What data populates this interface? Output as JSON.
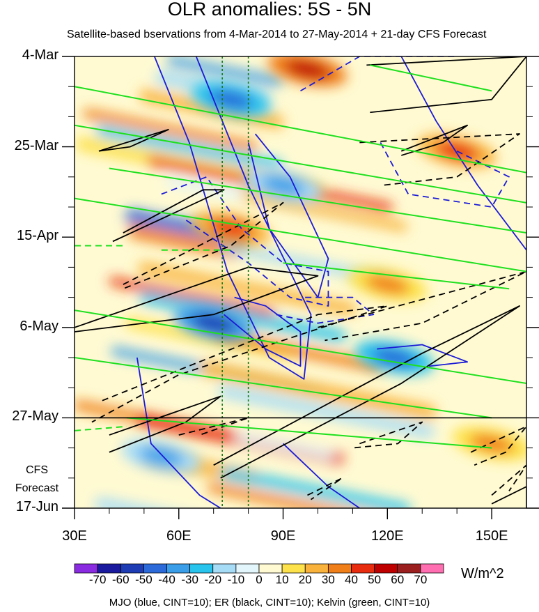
{
  "chart_data": {
    "type": "heatmap",
    "title": "OLR anomalies: 5S - 5N",
    "subtitle": "Satellite-based bservations from 4-Mar-2014 to 27-May-2014 + 21-day CFS Forecast",
    "xlabel": "",
    "ylabel": "",
    "x_range": [
      30,
      160
    ],
    "x_ticks": [
      {
        "value": 30,
        "label": "30E"
      },
      {
        "value": 60,
        "label": "60E"
      },
      {
        "value": 90,
        "label": "90E"
      },
      {
        "value": 120,
        "label": "120E"
      },
      {
        "value": 150,
        "label": "150E"
      }
    ],
    "y_range_days": [
      0,
      105
    ],
    "y_ticks": [
      {
        "day": 0,
        "label": "4-Mar"
      },
      {
        "day": 21,
        "label": "25-Mar"
      },
      {
        "day": 42,
        "label": "15-Apr"
      },
      {
        "day": 63,
        "label": "6-May"
      },
      {
        "day": 84,
        "label": "27-May"
      },
      {
        "day": 105,
        "label": "17-Jun"
      }
    ],
    "forecast_start_day": 84,
    "forecast_label_1": "CFS",
    "forecast_label_2": "Forecast",
    "reference_longitudes": [
      72.5,
      80
    ],
    "colorbar": {
      "units": "W/m^2",
      "labels": [
        "-70",
        "-60",
        "-50",
        "-40",
        "-30",
        "-20",
        "-10",
        "0",
        "10",
        "20",
        "30",
        "40",
        "50",
        "60",
        "70"
      ],
      "colors": [
        "#8a2be2",
        "#1a1a9e",
        "#1e3cb4",
        "#2b6ad8",
        "#3a9ee8",
        "#29c4ee",
        "#a7dcf7",
        "#e3f6fb",
        "#fffad2",
        "#fde24c",
        "#f9b33c",
        "#f07f1a",
        "#e82c10",
        "#bf0000",
        "#9c1f1f",
        "#ff6eb0"
      ]
    },
    "anomaly_features": [
      {
        "name": "strong positive anomaly",
        "lon": 97,
        "day": 3,
        "value": 50
      },
      {
        "name": "positive anomaly",
        "lon": 140,
        "day": 22,
        "value": 40
      },
      {
        "name": "positive anomaly",
        "lon": 75,
        "day": 40,
        "value": 45
      },
      {
        "name": "positive anomaly",
        "lon": 120,
        "day": 53,
        "value": 30
      },
      {
        "name": "positive anomaly",
        "lon": 150,
        "day": 90,
        "value": 30
      },
      {
        "name": "negative anomaly",
        "lon": 75,
        "day": 10,
        "value": -50
      },
      {
        "name": "negative anomaly",
        "lon": 90,
        "day": 30,
        "value": -40
      },
      {
        "name": "negative anomaly",
        "lon": 70,
        "day": 62,
        "value": -60
      },
      {
        "name": "negative anomaly",
        "lon": 122,
        "day": 70,
        "value": -50
      },
      {
        "name": "negative anomaly",
        "lon": 55,
        "day": 93,
        "value": -40
      }
    ],
    "contour_legend": "MJO (blue, CINT=10); ER (black, CINT=10); Kelvin (green, CINT=10)",
    "contours": [
      {
        "series": "MJO",
        "sign": "positive",
        "points": [
          [
            53,
            0
          ],
          [
            63,
            20
          ],
          [
            74,
            50
          ],
          [
            86,
            70
          ],
          [
            96,
            75
          ],
          [
            98,
            60
          ],
          [
            80,
            30
          ],
          [
            65,
            0
          ]
        ]
      },
      {
        "series": "MJO",
        "sign": "positive",
        "points": [
          [
            80,
            20
          ],
          [
            86,
            40
          ],
          [
            100,
            56
          ],
          [
            103,
            47
          ],
          [
            92,
            28
          ],
          [
            82,
            18
          ]
        ]
      },
      {
        "series": "MJO",
        "sign": "positive",
        "points": [
          [
            73,
            60
          ],
          [
            85,
            68
          ],
          [
            95,
            72
          ],
          [
            95,
            64
          ],
          [
            85,
            58
          ],
          [
            76,
            56
          ]
        ]
      },
      {
        "series": "MJO",
        "sign": "positive",
        "points": [
          [
            124,
            0
          ],
          [
            134,
            15
          ],
          [
            146,
            30
          ],
          [
            160,
            45
          ]
        ]
      },
      {
        "series": "MJO",
        "sign": "positive",
        "points": [
          [
            48,
            70
          ],
          [
            52,
            90
          ],
          [
            66,
            102
          ],
          [
            72,
            105
          ]
        ]
      },
      {
        "series": "MJO",
        "sign": "positive",
        "points": [
          [
            90,
            90
          ],
          [
            103,
            100
          ],
          [
            112,
            105
          ]
        ]
      },
      {
        "series": "MJO",
        "sign": "positive",
        "points": [
          [
            132,
            72
          ],
          [
            143,
            71
          ],
          [
            130,
            67
          ],
          [
            117,
            68
          ]
        ]
      },
      {
        "series": "MJO",
        "sign": "negative",
        "points": [
          [
            95,
            8
          ],
          [
            112,
            0
          ],
          [
            140,
            0
          ]
        ]
      },
      {
        "series": "MJO",
        "sign": "negative",
        "points": [
          [
            55,
            32
          ],
          [
            68,
            28
          ],
          [
            78,
            40
          ],
          [
            90,
            48
          ],
          [
            103,
            50
          ],
          [
            103,
            58
          ],
          [
            92,
            56
          ],
          [
            80,
            48
          ],
          [
            62,
            38
          ]
        ]
      },
      {
        "series": "MJO",
        "sign": "negative",
        "points": [
          [
            88,
            60
          ],
          [
            100,
            62
          ],
          [
            116,
            60
          ],
          [
            110,
            56
          ],
          [
            96,
            56
          ]
        ]
      },
      {
        "series": "MJO",
        "sign": "negative",
        "points": [
          [
            118,
            20
          ],
          [
            126,
            32
          ],
          [
            150,
            35
          ],
          [
            155,
            28
          ],
          [
            140,
            22
          ]
        ]
      },
      {
        "series": "ER",
        "sign": "positive",
        "points": [
          [
            37,
            22
          ],
          [
            57,
            17
          ],
          [
            46,
            21
          ],
          [
            37,
            22
          ]
        ]
      },
      {
        "series": "ER",
        "sign": "positive",
        "points": [
          [
            41,
            43
          ],
          [
            73,
            31
          ],
          [
            67,
            31
          ],
          [
            44,
            41
          ]
        ]
      },
      {
        "series": "ER",
        "sign": "positive",
        "points": [
          [
            30,
            63
          ],
          [
            80,
            49
          ],
          [
            100,
            51
          ],
          [
            70,
            60
          ],
          [
            30,
            64
          ]
        ]
      },
      {
        "series": "ER",
        "sign": "positive",
        "points": [
          [
            114,
            2
          ],
          [
            160,
            0
          ],
          [
            150,
            10
          ],
          [
            115,
            13
          ]
        ]
      },
      {
        "series": "ER",
        "sign": "positive",
        "points": [
          [
            124,
            22
          ],
          [
            143,
            16
          ],
          [
            136,
            20
          ],
          [
            124,
            23
          ]
        ]
      },
      {
        "series": "ER",
        "sign": "positive",
        "points": [
          [
            40,
            88
          ],
          [
            72,
            79
          ],
          [
            62,
            85
          ],
          [
            40,
            92
          ]
        ]
      },
      {
        "series": "ER",
        "sign": "positive",
        "points": [
          [
            70,
            95
          ],
          [
            130,
            69
          ],
          [
            158,
            58
          ],
          [
            124,
            76
          ],
          [
            72,
            98
          ]
        ]
      },
      {
        "series": "ER",
        "sign": "positive",
        "points": [
          [
            150,
            104
          ],
          [
            160,
            100
          ],
          [
            160,
            105
          ]
        ]
      },
      {
        "series": "ER",
        "sign": "negative",
        "points": [
          [
            44,
            53
          ],
          [
            90,
            34
          ],
          [
            75,
            44
          ],
          [
            44,
            54
          ]
        ]
      },
      {
        "series": "ER",
        "sign": "negative",
        "points": [
          [
            112,
            20
          ],
          [
            158,
            18
          ],
          [
            140,
            28
          ],
          [
            118,
            30
          ]
        ]
      },
      {
        "series": "ER",
        "sign": "negative",
        "points": [
          [
            100,
            63
          ],
          [
            160,
            50
          ],
          [
            130,
            62
          ],
          [
            102,
            66
          ]
        ]
      },
      {
        "series": "ER",
        "sign": "negative",
        "points": [
          [
            38,
            80
          ],
          [
            100,
            60
          ],
          [
            120,
            58
          ],
          [
            60,
            74
          ],
          [
            35,
            85
          ]
        ]
      },
      {
        "series": "ER",
        "sign": "negative",
        "points": [
          [
            112,
            90
          ],
          [
            130,
            85
          ],
          [
            123,
            90
          ],
          [
            110,
            91
          ]
        ]
      },
      {
        "series": "ER",
        "sign": "negative",
        "points": [
          [
            60,
            88
          ],
          [
            80,
            84
          ],
          [
            66,
            88
          ]
        ]
      },
      {
        "series": "ER",
        "sign": "negative",
        "points": [
          [
            144,
            92
          ],
          [
            160,
            86
          ],
          [
            154,
            92
          ],
          [
            145,
            95
          ]
        ]
      },
      {
        "series": "ER",
        "sign": "negative",
        "points": [
          [
            150,
            102
          ],
          [
            160,
            95
          ],
          [
            155,
            101
          ]
        ]
      },
      {
        "series": "ER",
        "sign": "negative",
        "points": [
          [
            97,
            102
          ],
          [
            107,
            98
          ],
          [
            98,
            103
          ]
        ]
      },
      {
        "series": "Kelvin",
        "sign": "positive",
        "points": [
          [
            30,
            7
          ],
          [
            160,
            27
          ]
        ]
      },
      {
        "series": "Kelvin",
        "sign": "positive",
        "points": [
          [
            30,
            16
          ],
          [
            160,
            34
          ]
        ]
      },
      {
        "series": "Kelvin",
        "sign": "positive",
        "points": [
          [
            40,
            26
          ],
          [
            160,
            41
          ]
        ]
      },
      {
        "series": "Kelvin",
        "sign": "positive",
        "points": [
          [
            30,
            33
          ],
          [
            160,
            50
          ]
        ]
      },
      {
        "series": "Kelvin",
        "sign": "positive",
        "points": [
          [
            30,
            59
          ],
          [
            160,
            76
          ]
        ]
      },
      {
        "series": "Kelvin",
        "sign": "positive",
        "points": [
          [
            30,
            70
          ],
          [
            150,
            84
          ]
        ]
      },
      {
        "series": "Kelvin",
        "sign": "positive",
        "points": [
          [
            45,
            84
          ],
          [
            150,
            91
          ]
        ]
      },
      {
        "series": "Kelvin",
        "sign": "positive",
        "points": [
          [
            90,
            48
          ],
          [
            155,
            54
          ]
        ]
      },
      {
        "series": "Kelvin",
        "sign": "positive",
        "points": [
          [
            115,
            2
          ],
          [
            150,
            8
          ]
        ]
      },
      {
        "series": "Kelvin",
        "sign": "negative",
        "points": [
          [
            30,
            44
          ],
          [
            45,
            44
          ]
        ]
      },
      {
        "series": "Kelvin",
        "sign": "negative",
        "points": [
          [
            30,
            87
          ],
          [
            45,
            86
          ]
        ]
      },
      {
        "series": "Kelvin",
        "sign": "negative",
        "points": [
          [
            55,
            45
          ],
          [
            75,
            45
          ]
        ]
      }
    ]
  }
}
